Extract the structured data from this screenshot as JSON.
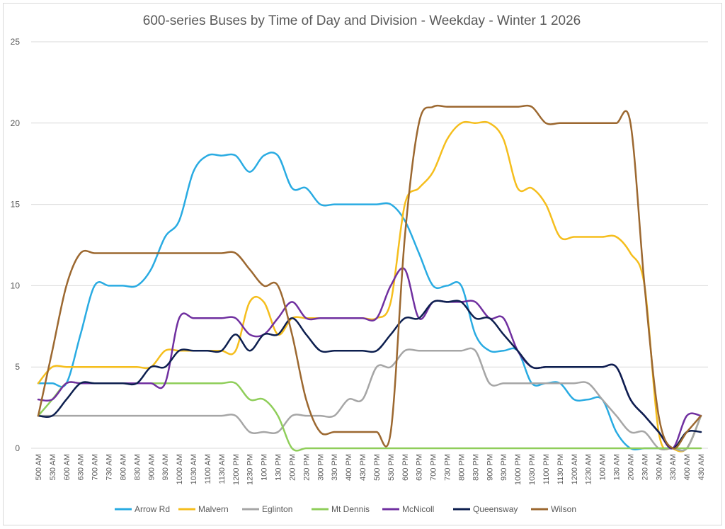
{
  "chart_data": {
    "type": "line",
    "title": "600-series Buses by Time of Day and Division - Weekday - Winter 1 2026",
    "xlabel": "",
    "ylabel": "",
    "ylim": [
      0,
      25
    ],
    "yticks": [
      0,
      5,
      10,
      15,
      20,
      25
    ],
    "categories": [
      "500 AM",
      "530 AM",
      "600 AM",
      "630 AM",
      "700 AM",
      "730 AM",
      "800 AM",
      "830 AM",
      "900 AM",
      "930 AM",
      "1000 AM",
      "1030 AM",
      "1100 AM",
      "1130 AM",
      "1200 PM",
      "1230 PM",
      "100 PM",
      "130 PM",
      "200 PM",
      "230 PM",
      "300 PM",
      "330 PM",
      "400 PM",
      "430 PM",
      "500 PM",
      "530 PM",
      "600 PM",
      "630 PM",
      "700 PM",
      "730 PM",
      "800 PM",
      "830 PM",
      "900 PM",
      "930 PM",
      "1000 PM",
      "1030 PM",
      "1100 PM",
      "1130 PM",
      "1200 AM",
      "1230 AM",
      "100 AM",
      "130 AM",
      "200 AM",
      "230 AM",
      "300 AM",
      "330 AM",
      "400 AM",
      "430 AM"
    ],
    "legend_position": "bottom",
    "series": [
      {
        "name": "Arrow Rd",
        "color": "#29abe2",
        "values": [
          4,
          4,
          4,
          7,
          10,
          10,
          10,
          10,
          11,
          13,
          14,
          17,
          18,
          18,
          18,
          17,
          18,
          18,
          16,
          16,
          15,
          15,
          15,
          15,
          15,
          15,
          14,
          12,
          10,
          10,
          10,
          7,
          6,
          6,
          6,
          4,
          4,
          4,
          3,
          3,
          3,
          1,
          0,
          0,
          0,
          0,
          0,
          2
        ]
      },
      {
        "name": "Malvern",
        "color": "#f5be1d",
        "values": [
          4,
          5,
          5,
          5,
          5,
          5,
          5,
          5,
          5,
          6,
          6,
          6,
          6,
          6,
          6,
          9,
          9,
          7,
          8,
          8,
          8,
          8,
          8,
          8,
          8,
          9,
          15,
          16,
          17,
          19,
          20,
          20,
          20,
          19,
          16,
          16,
          15,
          13,
          13,
          13,
          13,
          13,
          12,
          10,
          1,
          0,
          0,
          2
        ]
      },
      {
        "name": "Eglinton",
        "color": "#a6a6a6",
        "values": [
          2,
          2,
          2,
          2,
          2,
          2,
          2,
          2,
          2,
          2,
          2,
          2,
          2,
          2,
          2,
          1,
          1,
          1,
          2,
          2,
          2,
          2,
          3,
          3,
          5,
          5,
          6,
          6,
          6,
          6,
          6,
          6,
          4,
          4,
          4,
          4,
          4,
          4,
          4,
          4,
          3,
          2,
          1,
          1,
          0,
          0,
          0,
          2
        ]
      },
      {
        "name": "Mt Dennis",
        "color": "#8fce5a",
        "values": [
          2,
          3,
          4,
          4,
          4,
          4,
          4,
          4,
          4,
          4,
          4,
          4,
          4,
          4,
          4,
          3,
          3,
          2,
          0,
          0,
          0,
          0,
          0,
          0,
          0,
          0,
          0,
          0,
          0,
          0,
          0,
          0,
          0,
          0,
          0,
          0,
          0,
          0,
          0,
          0,
          0,
          0,
          0,
          0,
          0,
          0,
          0,
          0
        ]
      },
      {
        "name": "McNicoll",
        "color": "#7030a0",
        "values": [
          3,
          3,
          4,
          4,
          4,
          4,
          4,
          4,
          4,
          4,
          8,
          8,
          8,
          8,
          8,
          7,
          7,
          8,
          9,
          8,
          8,
          8,
          8,
          8,
          8,
          10,
          11,
          8,
          9,
          9,
          9,
          9,
          8,
          8,
          6,
          5,
          5,
          5,
          5,
          5,
          5,
          5,
          3,
          2,
          1,
          0,
          2,
          2
        ]
      },
      {
        "name": "Queensway",
        "color": "#0d1f4f",
        "values": [
          2,
          2,
          3,
          4,
          4,
          4,
          4,
          4,
          5,
          5,
          6,
          6,
          6,
          6,
          7,
          6,
          7,
          7,
          8,
          7,
          6,
          6,
          6,
          6,
          6,
          7,
          8,
          8,
          9,
          9,
          9,
          8,
          8,
          7,
          6,
          5,
          5,
          5,
          5,
          5,
          5,
          5,
          3,
          2,
          1,
          0,
          1,
          1
        ]
      },
      {
        "name": "Wilson",
        "color": "#9c6830",
        "values": [
          2,
          6,
          10,
          12,
          12,
          12,
          12,
          12,
          12,
          12,
          12,
          12,
          12,
          12,
          12,
          11,
          10,
          10,
          7,
          3,
          1,
          1,
          1,
          1,
          1,
          1,
          13,
          20,
          21,
          21,
          21,
          21,
          21,
          21,
          21,
          21,
          20,
          20,
          20,
          20,
          20,
          20,
          20,
          10,
          2,
          0,
          1,
          2
        ]
      }
    ]
  }
}
